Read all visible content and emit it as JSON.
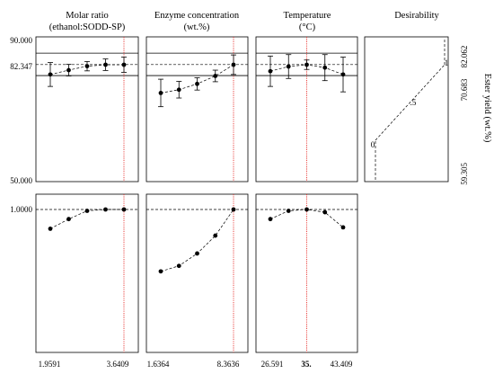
{
  "chart_data": {
    "type": "prediction-profiler",
    "factors": [
      {
        "title_line1": "Molar ratio",
        "title_line2": "(ethanol:SODD-SP)",
        "range": [
          1.9591,
          3.6409
        ],
        "tick_labels": [
          "1.9591",
          "3.6409"
        ],
        "optimum": 3.6409,
        "points": [
          {
            "x": 1.9591,
            "yield": 79.6,
            "err": 3.3,
            "desir": 0.86
          },
          {
            "x": 2.3795,
            "yield": 80.8,
            "err": 1.6,
            "desir": 0.93
          },
          {
            "x": 2.8,
            "yield": 81.9,
            "err": 1.3,
            "desir": 0.99
          },
          {
            "x": 3.2204,
            "yield": 82.3,
            "err": 1.6,
            "desir": 1.0
          },
          {
            "x": 3.6409,
            "yield": 82.3,
            "err": 2.1,
            "desir": 1.0
          }
        ]
      },
      {
        "title_line1": "Enzyme concentration",
        "title_line2": "(wt.%)",
        "range": [
          1.6364,
          8.3636
        ],
        "tick_labels": [
          "1.6364",
          "8.3636"
        ],
        "optimum": 8.3636,
        "points": [
          {
            "x": 1.6364,
            "yield": 74.5,
            "err": 3.8,
            "desir": 0.55
          },
          {
            "x": 3.3182,
            "yield": 75.4,
            "err": 2.3,
            "desir": 0.59
          },
          {
            "x": 5.0,
            "yield": 77.0,
            "err": 1.7,
            "desir": 0.68
          },
          {
            "x": 6.6818,
            "yield": 79.2,
            "err": 1.6,
            "desir": 0.81
          },
          {
            "x": 8.3636,
            "yield": 82.3,
            "err": 2.7,
            "desir": 1.0
          }
        ]
      },
      {
        "title_line1": "Temperature",
        "title_line2": "(°C)",
        "range": [
          26.591,
          43.409
        ],
        "tick_labels": [
          "26.591",
          "35.",
          "43.409"
        ],
        "bold_tick": "35.",
        "optimum": 35,
        "points": [
          {
            "x": 26.591,
            "yield": 80.5,
            "err": 4.2,
            "desir": 0.93
          },
          {
            "x": 30.795,
            "yield": 81.8,
            "err": 3.3,
            "desir": 0.99
          },
          {
            "x": 35.0,
            "yield": 82.3,
            "err": 1.3,
            "desir": 1.0
          },
          {
            "x": 39.204,
            "yield": 81.5,
            "err": 3.6,
            "desir": 0.98
          },
          {
            "x": 43.409,
            "yield": 79.6,
            "err": 4.8,
            "desir": 0.87
          }
        ]
      }
    ],
    "response": {
      "ylim": [
        50,
        90
      ],
      "tick_labels": [
        "90.000",
        "82.347",
        "50.000"
      ],
      "current": 82.347,
      "band": [
        79.3,
        85.5
      ]
    },
    "desirability": {
      "title": "Desirability",
      "ylim": [
        0,
        1
      ],
      "tick_label": "1.0000",
      "curve_points": [
        [
          0,
          59.305
        ],
        [
          1,
          82.062
        ]
      ],
      "curve_labels": [
        "0",
        ".5",
        "1"
      ],
      "right_axis_label": "Ester yield (wt.%)",
      "right_axis_ticks": [
        "82.062",
        "70.683",
        "59.305"
      ]
    }
  }
}
